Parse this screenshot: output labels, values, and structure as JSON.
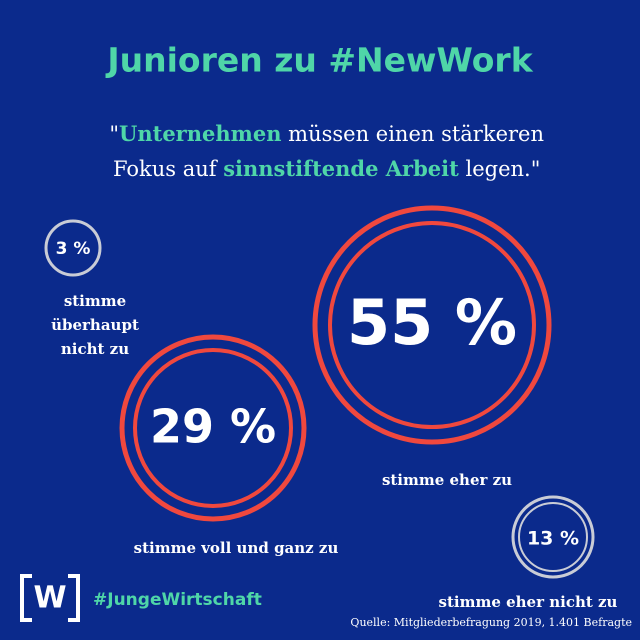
{
  "header": {
    "title": "Junioren zu #NewWork"
  },
  "quote": {
    "lines": [
      [
        "\"",
        "Unternehmen",
        " müssen einen stärkeren"
      ],
      [
        "Fokus auf ",
        "sinnstiftende Arbeit",
        " legen.\""
      ]
    ]
  },
  "results": [
    {
      "value": "3 %",
      "label": [
        "stimme",
        "überhaupt",
        "nicht zu"
      ]
    },
    {
      "value": "29 %",
      "label": [
        "stimme voll und ganz zu"
      ]
    },
    {
      "value": "55 %",
      "label": [
        "stimme eher zu"
      ]
    },
    {
      "value": "13 %",
      "label": [
        "stimme eher nicht zu"
      ]
    }
  ],
  "footer": {
    "logo": "W",
    "hashtag": "#JungeWirtschaft",
    "source": "Quelle: Mitgliederbefragung 2019, 1.401 Befragte"
  }
}
